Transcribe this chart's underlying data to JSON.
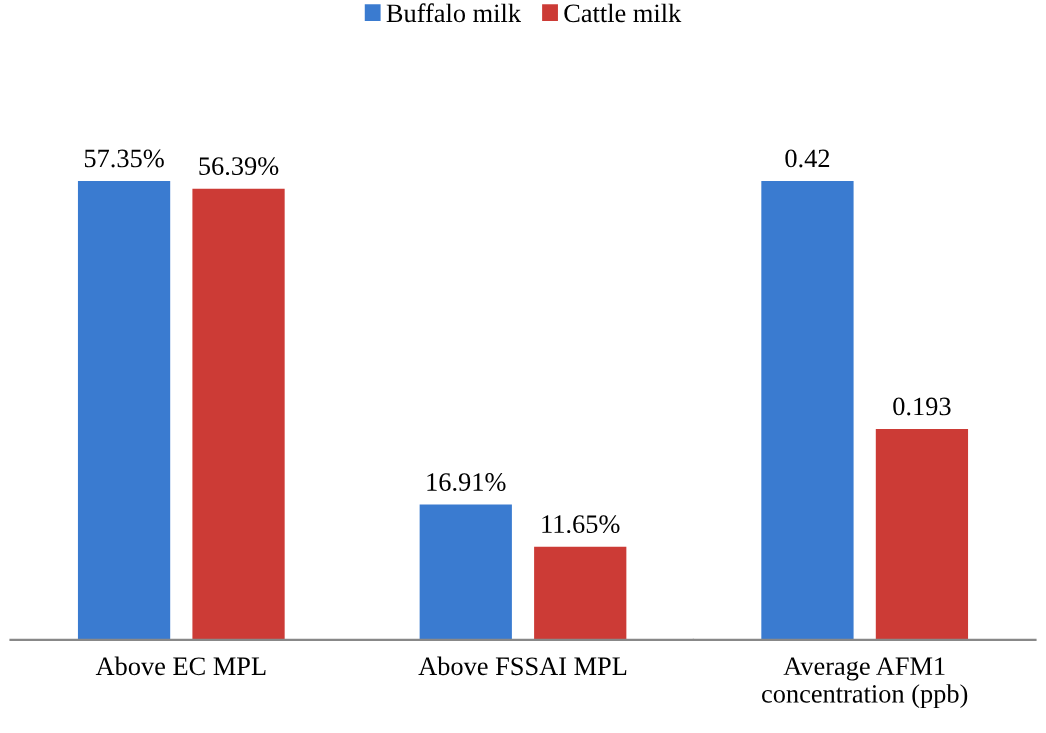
{
  "chart_data": [
    {
      "type": "bar",
      "categories": [
        "Above EC MPL",
        "Above FSSAI MPL"
      ],
      "tick_labels": "x",
      "legend": "top",
      "series": [
        {
          "name": "Buffalo milk",
          "color": "#3a7bd0",
          "values": [
            57.35,
            16.91
          ],
          "value_labels": [
            "57.35%",
            "16.91%"
          ]
        },
        {
          "name": "Cattle milk",
          "color": "#cc3b36",
          "values": [
            56.39,
            11.65
          ],
          "value_labels": [
            "56.39%",
            "11.65%"
          ]
        }
      ]
    },
    {
      "type": "bar",
      "categories": [
        "Average AFM1\nconcentration (ppb)"
      ],
      "tick_labels": "x",
      "data_labels": true,
      "series": [
        {
          "color": "#3a7bd0",
          "values": [
            0.42
          ]
        },
        {
          "color": "#cc3b36",
          "values": [
            0.193
          ]
        }
      ]
    }
  ]
}
